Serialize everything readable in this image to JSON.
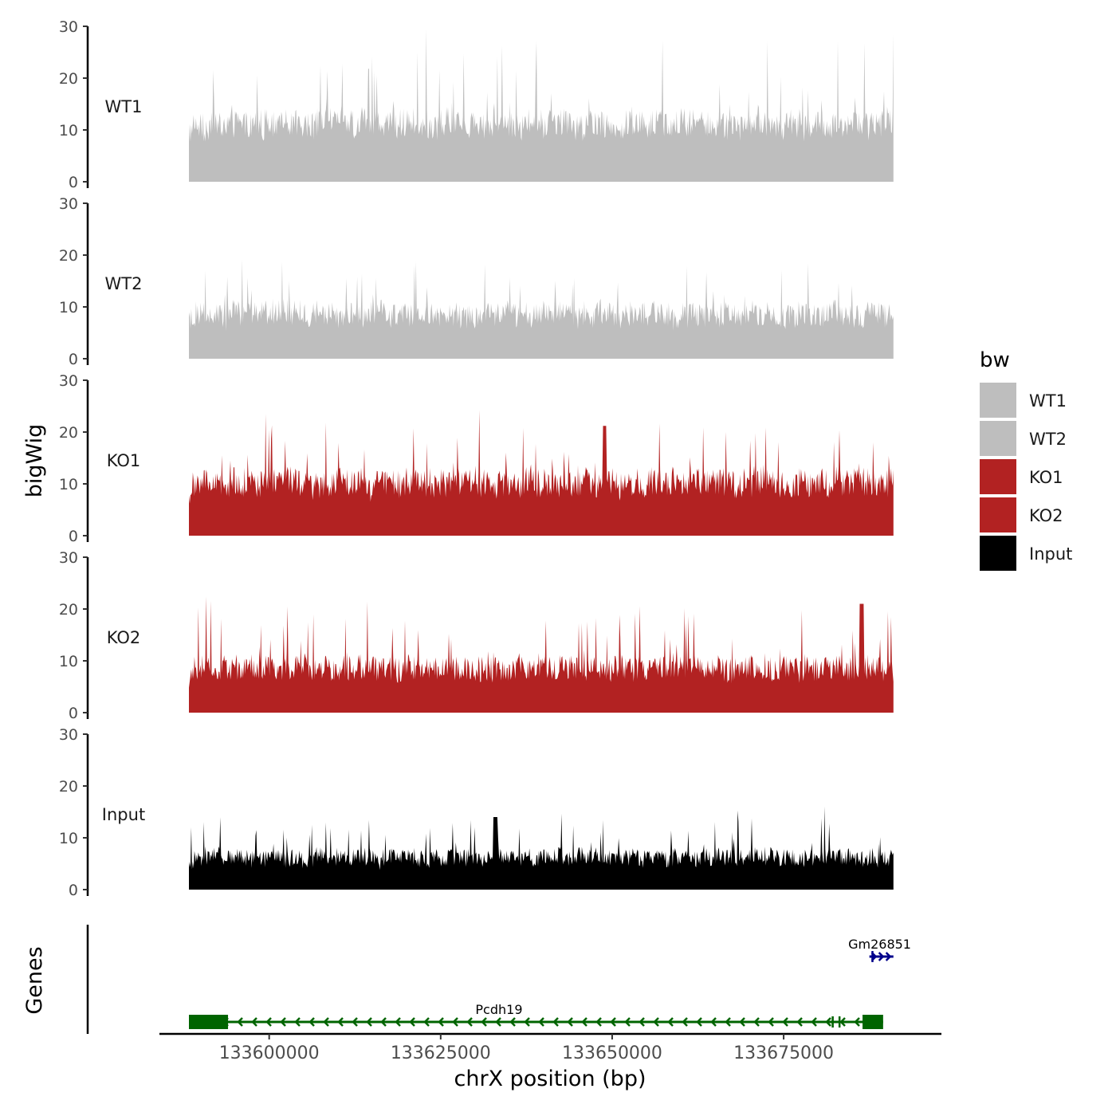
{
  "chart_data": {
    "type": "area",
    "title": "",
    "ylabel": "bigWig",
    "xlabel": "chrX position (bp)",
    "xlim": [
      133584000,
      133698000
    ],
    "data_x_range": [
      133588300,
      133691000
    ],
    "ylim": [
      0,
      30
    ],
    "y_ticks": [
      "0",
      "10",
      "20",
      "30"
    ],
    "x_ticks": [
      {
        "value": 133600000,
        "label": "133600000"
      },
      {
        "value": 133625000,
        "label": "133625000"
      },
      {
        "value": 133650000,
        "label": "133650000"
      },
      {
        "value": 133675000,
        "label": "133675000"
      }
    ],
    "series": [
      {
        "name": "WT1",
        "color": "#bebebe",
        "baseline": 6,
        "spread": 8,
        "peak": 28.5
      },
      {
        "name": "WT2",
        "color": "#bebebe",
        "baseline": 4,
        "spread": 7,
        "peak": 16.5
      },
      {
        "name": "KO1",
        "color": "#b22222",
        "baseline": 5,
        "spread": 8,
        "peak": 21.2
      },
      {
        "name": "KO2",
        "color": "#b22222",
        "baseline": 4,
        "spread": 7,
        "peak": 21.0
      },
      {
        "name": "Input",
        "color": "#000000",
        "baseline": 3,
        "spread": 5,
        "peak": 14.0
      }
    ],
    "legend": {
      "title": "bw",
      "position": "right",
      "entries": [
        {
          "label": "WT1",
          "color": "#bebebe"
        },
        {
          "label": "WT2",
          "color": "#bebebe"
        },
        {
          "label": "KO1",
          "color": "#b22222"
        },
        {
          "label": "KO2",
          "color": "#b22222"
        },
        {
          "label": "Input",
          "color": "#000000"
        }
      ]
    },
    "genes_track": {
      "label": "Genes",
      "genes": [
        {
          "name": "Pcdh19",
          "start": 133588300,
          "end": 133689500,
          "strand": "-",
          "color": "#006400",
          "exons": [
            [
              133588300,
              133594000
            ],
            [
              133682000,
              133682300
            ],
            [
              133683000,
              133683200
            ],
            [
              133686500,
              133689500
            ]
          ]
        },
        {
          "name": "Gm26851",
          "start": 133687500,
          "end": 133691000,
          "strand": "+",
          "color": "#00008b",
          "exons": [
            [
              133687800,
              133688000
            ]
          ]
        }
      ]
    }
  }
}
